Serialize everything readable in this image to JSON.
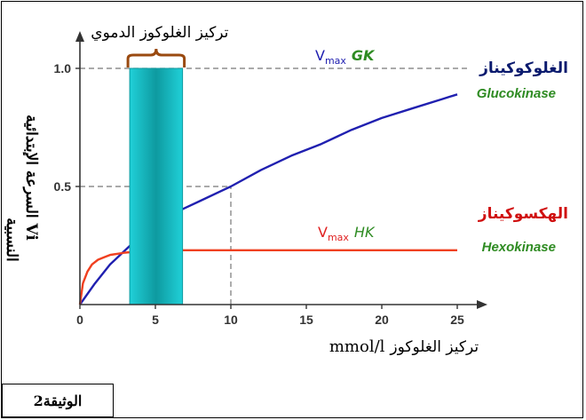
{
  "document_label": "الوثيقة2",
  "colors": {
    "gk_curve": "#2020b0",
    "hk_curve": "#f04020",
    "gk_name_ar": "#0a1a6e",
    "hk_name_ar": "#d01010",
    "en_label": "#2e8b22",
    "band_fill": "#20d0d8",
    "band_edge": "#0e9aa0",
    "bracket": "#9a4a10",
    "dashed": "#777777"
  },
  "chart_data": {
    "type": "line",
    "title": "",
    "xlabel_ar": "تركيز الغلوكوز",
    "xlabel_unit": "mmol/l",
    "ylabel_line1": "السرعة الإبتدائية Vi",
    "ylabel_line2": "النسبية",
    "xlim": [
      0,
      26.5
    ],
    "ylim": [
      0,
      1.1
    ],
    "x_ticks": [
      0,
      5,
      10,
      15,
      20,
      25
    ],
    "y_ticks": [
      {
        "value": 0.5,
        "label": "0.5"
      },
      {
        "value": 1.0,
        "label": "1.0"
      }
    ],
    "reference_lines": [
      {
        "axis": "y",
        "value": 1.0
      },
      {
        "axis": "y",
        "value": 0.5,
        "x_end": 10
      },
      {
        "axis": "x",
        "value": 10,
        "y_end": 0.5
      }
    ],
    "series": [
      {
        "name": "Glucokinase",
        "name_ar": "الغلوكوكيناز",
        "vmax_label": "GK",
        "x": [
          0,
          1,
          2,
          3,
          4,
          5,
          6,
          7,
          8,
          10,
          12,
          14,
          16,
          18,
          20,
          22,
          24,
          25
        ],
        "y": [
          0,
          0.09,
          0.17,
          0.23,
          0.29,
          0.34,
          0.38,
          0.41,
          0.44,
          0.5,
          0.57,
          0.63,
          0.68,
          0.74,
          0.79,
          0.83,
          0.87,
          0.89
        ]
      },
      {
        "name": "Hexokinase",
        "name_ar": "الهكسوكيناز",
        "vmax_label": "HK",
        "x": [
          0,
          0.2,
          0.5,
          0.8,
          1.2,
          1.6,
          2,
          2.5,
          3,
          4,
          5,
          6,
          7,
          10,
          15,
          20,
          25
        ],
        "y": [
          0,
          0.09,
          0.14,
          0.17,
          0.19,
          0.2,
          0.21,
          0.215,
          0.22,
          0.225,
          0.228,
          0.23,
          0.23,
          0.23,
          0.23,
          0.23,
          0.23
        ]
      }
    ],
    "blood_glucose_range": {
      "label": "تركيز الغلوكوز الدموي",
      "x_from": 3.3,
      "x_to": 6.8
    }
  }
}
